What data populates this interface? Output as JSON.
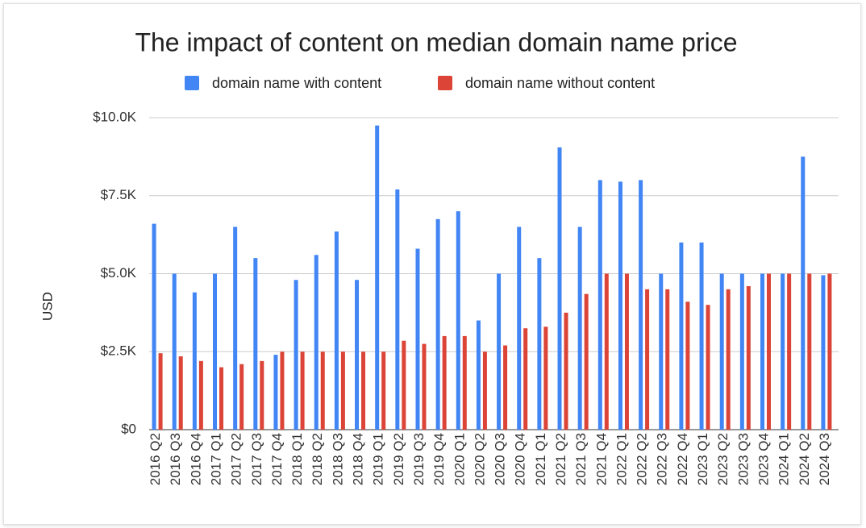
{
  "chart_data": {
    "type": "bar",
    "title": "The impact of content on median domain name price",
    "y_label": "USD",
    "categories": [
      "2016 Q2",
      "2016 Q3",
      "2016 Q4",
      "2017 Q1",
      "2017 Q2",
      "2017 Q3",
      "2017 Q4",
      "2018 Q1",
      "2018 Q2",
      "2018 Q3",
      "2018 Q4",
      "2019 Q1",
      "2019 Q2",
      "2019 Q3",
      "2019 Q4",
      "2020 Q1",
      "2020 Q2",
      "2020 Q3",
      "2020 Q4",
      "2021 Q1",
      "2021 Q2",
      "2021 Q3",
      "2021 Q4",
      "2022 Q1",
      "2022 Q2",
      "2022 Q3",
      "2022 Q4",
      "2023 Q1",
      "2023 Q2",
      "2023 Q3",
      "2023 Q4",
      "2024 Q1",
      "2024 Q2",
      "2024 Q3"
    ],
    "series": [
      {
        "name": "domain name with content",
        "color": "#4285f4",
        "values": [
          6600,
          5000,
          4400,
          5000,
          6500,
          5500,
          2400,
          4800,
          5600,
          6350,
          4800,
          9750,
          7700,
          5800,
          6750,
          7000,
          3500,
          5000,
          6500,
          5500,
          9050,
          6500,
          8000,
          7950,
          8000,
          5000,
          6000,
          6000,
          5000,
          5000,
          5000,
          5000,
          8750,
          4950
        ]
      },
      {
        "name": "domain name without content",
        "color": "#db4437",
        "values": [
          2450,
          2350,
          2200,
          2000,
          2100,
          2200,
          2500,
          2500,
          2500,
          2500,
          2500,
          2500,
          2850,
          2750,
          3000,
          3000,
          2500,
          2700,
          3250,
          3300,
          3750,
          4350,
          5000,
          5000,
          4500,
          4500,
          4100,
          4000,
          4500,
          4600,
          5000,
          5000,
          5000,
          5000
        ]
      }
    ],
    "ylim": [
      0,
      10000
    ],
    "yticks": [
      {
        "value": 0,
        "label": "$0"
      },
      {
        "value": 2500,
        "label": "$2.5K"
      },
      {
        "value": 5000,
        "label": "$5.0K"
      },
      {
        "value": 7500,
        "label": "$7.5K"
      },
      {
        "value": 10000,
        "label": "$10.0K"
      }
    ],
    "grid": true,
    "legend": "top"
  }
}
